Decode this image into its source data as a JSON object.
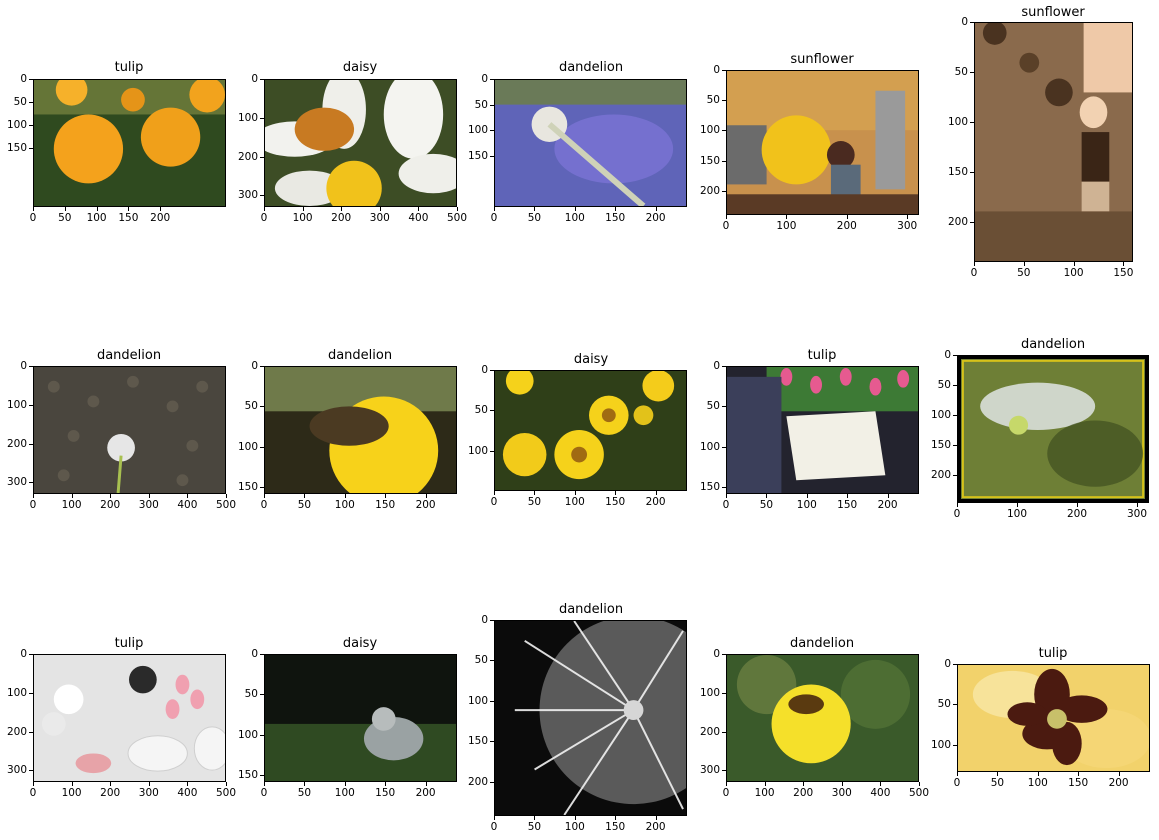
{
  "subplots": [
    {
      "title": "tulip",
      "x_ticks": [
        "0",
        "50",
        "100",
        "150",
        "200"
      ],
      "y_ticks": [
        "0",
        "50",
        "100",
        "150"
      ],
      "colors": {
        "bg": "#3b5a22",
        "accent": "#f4a21c"
      }
    },
    {
      "title": "daisy",
      "x_ticks": [
        "0",
        "100",
        "200",
        "300",
        "400",
        "500"
      ],
      "y_ticks": [
        "0",
        "100",
        "200",
        "300"
      ],
      "colors": {
        "bg": "#4b5a2a",
        "accent": "#f2f2ee"
      }
    },
    {
      "title": "dandelion",
      "x_ticks": [
        "0",
        "50",
        "100",
        "150",
        "200"
      ],
      "y_ticks": [
        "0",
        "50",
        "100",
        "150"
      ],
      "colors": {
        "bg": "#7066c8",
        "accent": "#e8e6df"
      }
    },
    {
      "title": "sunflower",
      "x_ticks": [
        "0",
        "100",
        "200",
        "300"
      ],
      "y_ticks": [
        "0",
        "50",
        "100",
        "150",
        "200"
      ],
      "colors": {
        "bg": "#b8853f",
        "accent": "#f1c21b"
      }
    },
    {
      "title": "sunflower",
      "x_ticks": [
        "0",
        "50",
        "100",
        "150"
      ],
      "y_ticks": [
        "0",
        "50",
        "100",
        "150",
        "200"
      ],
      "colors": {
        "bg": "#8a6a4c",
        "accent": "#f2d2b2"
      }
    },
    {
      "title": "dandelion",
      "x_ticks": [
        "0",
        "100",
        "200",
        "300",
        "400",
        "500"
      ],
      "y_ticks": [
        "0",
        "100",
        "200",
        "300"
      ],
      "colors": {
        "bg": "#4a463e",
        "accent": "#dddddd"
      }
    },
    {
      "title": "dandelion",
      "x_ticks": [
        "0",
        "50",
        "100",
        "150",
        "200"
      ],
      "y_ticks": [
        "0",
        "50",
        "100",
        "150"
      ],
      "colors": {
        "bg": "#3c3520",
        "accent": "#f7d21a"
      }
    },
    {
      "title": "daisy",
      "x_ticks": [
        "0",
        "50",
        "100",
        "150",
        "200"
      ],
      "y_ticks": [
        "0",
        "50",
        "100"
      ],
      "colors": {
        "bg": "#3a4b1f",
        "accent": "#f5d21b"
      }
    },
    {
      "title": "tulip",
      "x_ticks": [
        "0",
        "50",
        "100",
        "150",
        "200"
      ],
      "y_ticks": [
        "0",
        "50",
        "100",
        "150"
      ],
      "colors": {
        "bg": "#2a2b3a",
        "accent": "#e65a90"
      }
    },
    {
      "title": "dandelion",
      "x_ticks": [
        "0",
        "100",
        "200",
        "300"
      ],
      "y_ticks": [
        "0",
        "50",
        "100",
        "150",
        "200"
      ],
      "colors": {
        "bg": "#6e7f36",
        "accent": "#d6c21a"
      }
    },
    {
      "title": "tulip",
      "x_ticks": [
        "0",
        "100",
        "200",
        "300",
        "400",
        "500"
      ],
      "y_ticks": [
        "0",
        "100",
        "200",
        "300"
      ],
      "colors": {
        "bg": "#e4e4e4",
        "accent": "#f0a0b0"
      }
    },
    {
      "title": "daisy",
      "x_ticks": [
        "0",
        "50",
        "100",
        "150",
        "200"
      ],
      "y_ticks": [
        "0",
        "50",
        "100",
        "150"
      ],
      "colors": {
        "bg": "#0f140e",
        "accent": "#9aa2a3"
      }
    },
    {
      "title": "dandelion",
      "x_ticks": [
        "0",
        "50",
        "100",
        "150",
        "200"
      ],
      "y_ticks": [
        "0",
        "50",
        "100",
        "150",
        "200"
      ],
      "colors": {
        "bg": "#101010",
        "accent": "#f2f2f2"
      }
    },
    {
      "title": "dandelion",
      "x_ticks": [
        "0",
        "100",
        "200",
        "300",
        "400",
        "500"
      ],
      "y_ticks": [
        "0",
        "100",
        "200",
        "300"
      ],
      "colors": {
        "bg": "#3a5a2a",
        "accent": "#f5e02a"
      }
    },
    {
      "title": "tulip",
      "x_ticks": [
        "0",
        "50",
        "100",
        "150",
        "200"
      ],
      "y_ticks": [
        "0",
        "50",
        "100"
      ],
      "colors": {
        "bg": "#f2d26b",
        "accent": "#4b1a10"
      }
    }
  ]
}
